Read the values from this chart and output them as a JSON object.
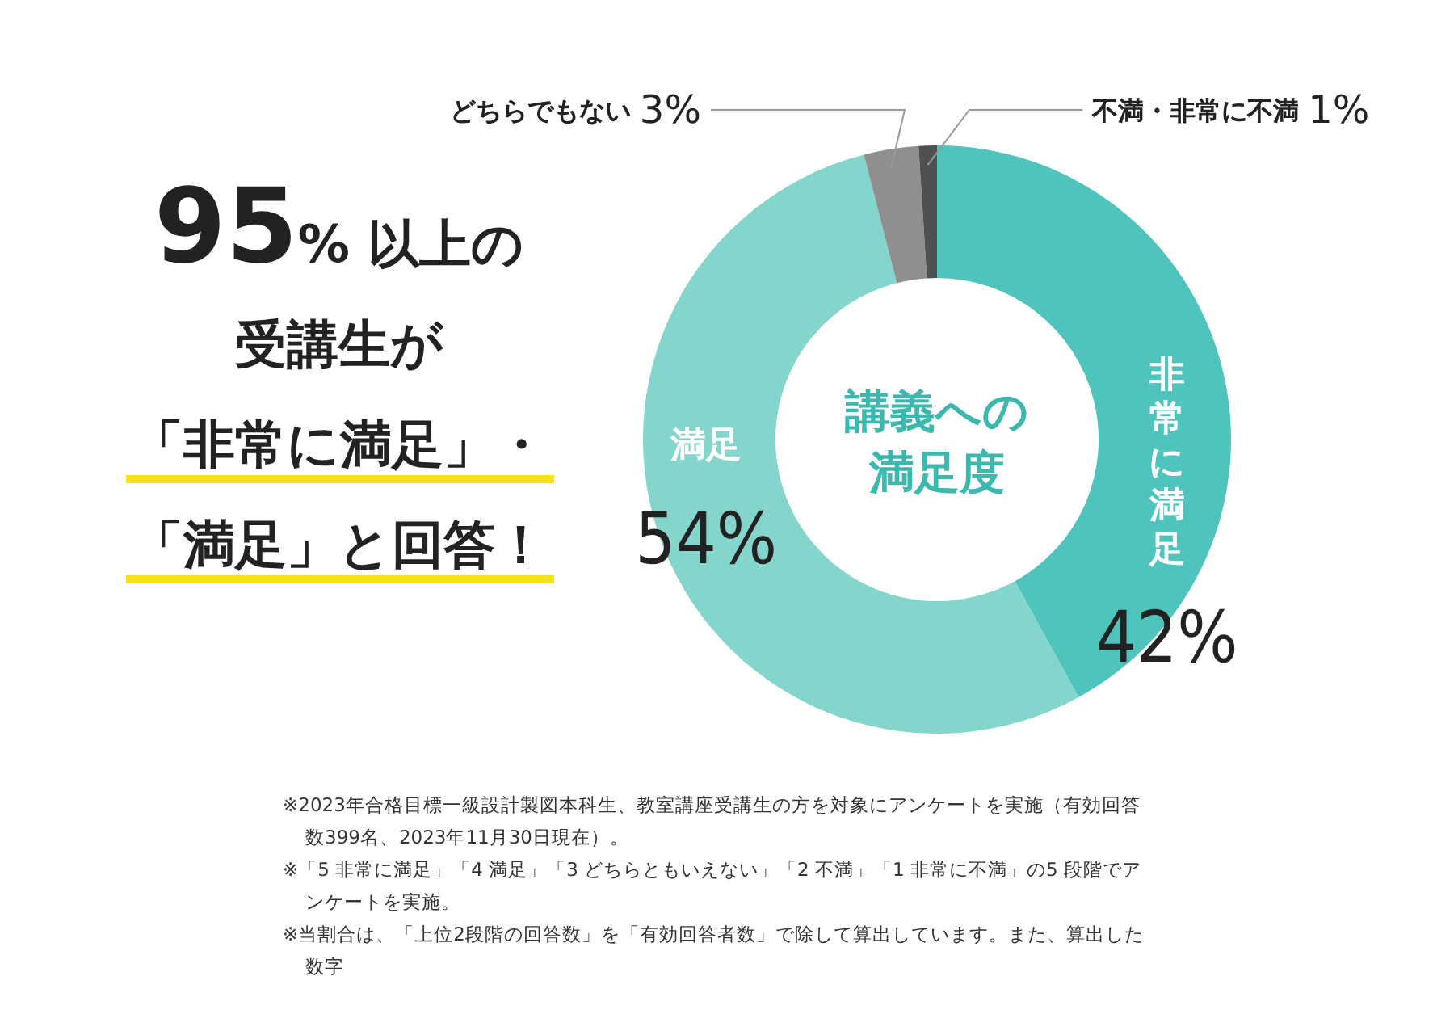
{
  "chart_data": {
    "type": "donut",
    "title": "講義への満足度",
    "categories": [
      "非常に満足",
      "満足",
      "どちらでもない",
      "不満・非常に不満"
    ],
    "values": [
      42,
      54,
      3,
      1
    ],
    "colors": [
      "#4fc4bc",
      "#84d5cb",
      "#8f8f8f",
      "#505050"
    ],
    "value_labels": [
      "42%",
      "54%",
      "3%",
      "1%"
    ],
    "annotations": [
      "95% 以上の",
      "受講生が",
      "「非常に満足」・",
      "「満足」と回答！",
      "※2023年合格目標一級設計製図本科生、教室講座受講生の方を対象にアンケートを実施（有効回答数399名、2023年11月30日現在）。",
      "※「5 非常に満足」「4 満足」「3 どちらともいえない」「2 不満」「1 非常に不満」の5 段階でアンケートを実施。",
      "※当割合は、「上位2段階の回答数」を「有効回答者数」で除して算出しています。また、算出した数字"
    ]
  }
}
